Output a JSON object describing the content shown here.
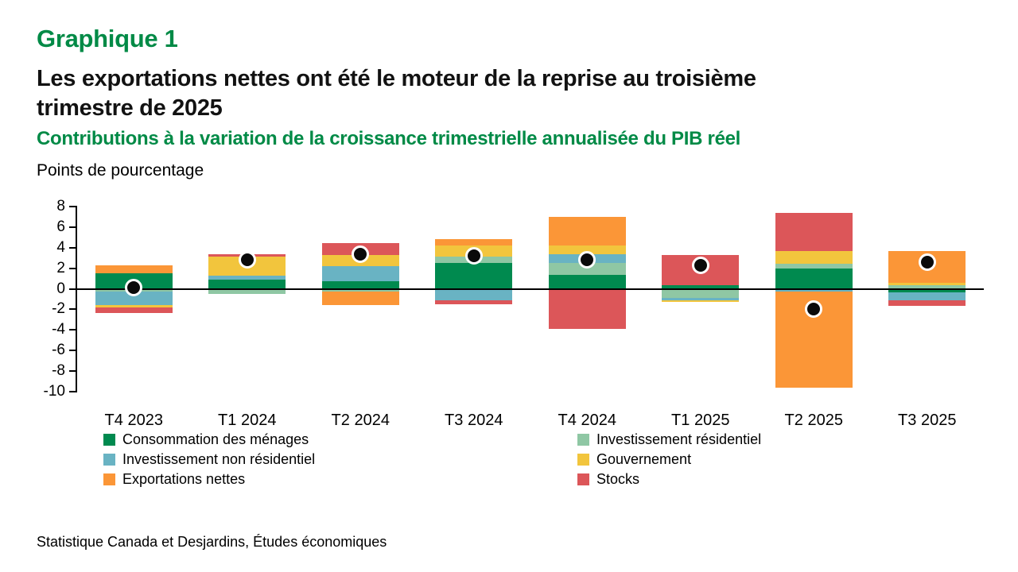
{
  "page": {
    "kicker": "Graphique 1",
    "title_line1": "Les exportations nettes ont été le moteur de la reprise au troisième",
    "title_line2": "trimestre de 2025",
    "subtitle": "Contributions à la variation de la croissance trimestrielle annualisée du PIB réel",
    "unit_label": "Points de pourcentage",
    "source": "Statistique Canada et Desjardins, Études économiques",
    "accent_color": "#008A46"
  },
  "chart_data": {
    "type": "bar",
    "subtype": "stacked-bar-with-total-dots",
    "title": "Contributions à la variation de la croissance trimestrielle annualisée du PIB réel",
    "ylabel": "Points de pourcentage",
    "xlabel": "",
    "ylim": [
      -10,
      8
    ],
    "ytick_step": 2,
    "grid": false,
    "legend_position": "bottom-two-columns",
    "categories": [
      "T4 2023",
      "T1 2024",
      "T2 2024",
      "T3 2024",
      "T4 2024",
      "T1 2025",
      "T2 2025",
      "T3 2025"
    ],
    "series": [
      {
        "name": "Consommation des ménages",
        "color": "#008A4F",
        "values": [
          1.5,
          0.9,
          0.75,
          2.55,
          1.35,
          0.35,
          2.0,
          -0.35
        ]
      },
      {
        "name": "Investissement résidentiel",
        "color": "#8FC7A4",
        "values": [
          -0.3,
          -0.5,
          -0.25,
          0.55,
          1.15,
          -0.9,
          0.45,
          0.35
        ]
      },
      {
        "name": "Investissement non résidentiel",
        "color": "#69B3C3",
        "values": [
          -1.3,
          0.4,
          1.45,
          -1.1,
          0.9,
          -0.2,
          -0.25,
          -0.75
        ]
      },
      {
        "name": "Gouvernement",
        "color": "#F2C53D",
        "values": [
          -0.2,
          1.8,
          1.1,
          1.1,
          0.8,
          -0.15,
          1.2,
          0.2
        ]
      },
      {
        "name": "Exportations nettes",
        "color": "#FB9637",
        "values": [
          0.75,
          0,
          -1.3,
          0.6,
          2.8,
          0,
          -9.35,
          3.15
        ]
      },
      {
        "name": "Stocks",
        "color": "#DC5659",
        "values": [
          -0.55,
          0.3,
          1.15,
          -0.4,
          -3.9,
          2.9,
          3.7,
          -0.55
        ]
      }
    ],
    "points": {
      "name": "Croissance trimestrielle annualisée du PIB réel (total)",
      "color": "#0a0a0a",
      "values": [
        0.1,
        2.8,
        3.4,
        3.2,
        2.8,
        2.3,
        -2.0,
        2.6
      ]
    }
  }
}
